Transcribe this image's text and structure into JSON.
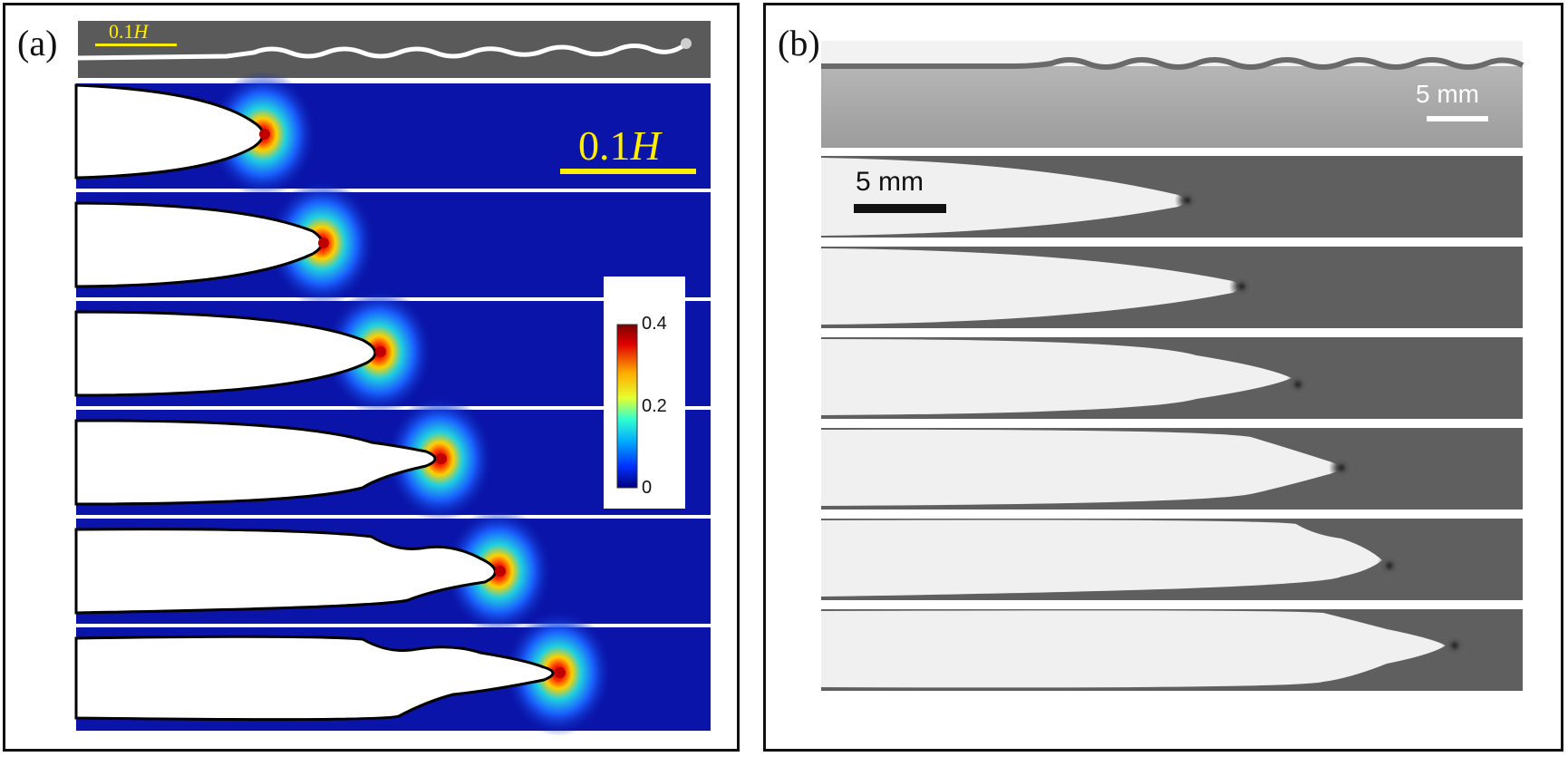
{
  "figure": {
    "panel_a": {
      "label": "(a)",
      "top_scale_label_prefix": "0.1",
      "top_scale_label_var": "H",
      "main_scale_label_prefix": "0.1",
      "main_scale_label_var": "H",
      "colorbar": {
        "ticks": [
          "0.4",
          "0.2",
          "0"
        ],
        "range": [
          0,
          0.4
        ]
      }
    },
    "panel_b": {
      "label": "(b)",
      "top_scale_label": "5 mm",
      "main_scale_label": "5 mm"
    },
    "colors": {
      "field_background": "#0a14a8",
      "scale_bar_a": "#ffee00",
      "photo_background": "#5f5f5f",
      "crack_opening": "#ffffff"
    }
  }
}
